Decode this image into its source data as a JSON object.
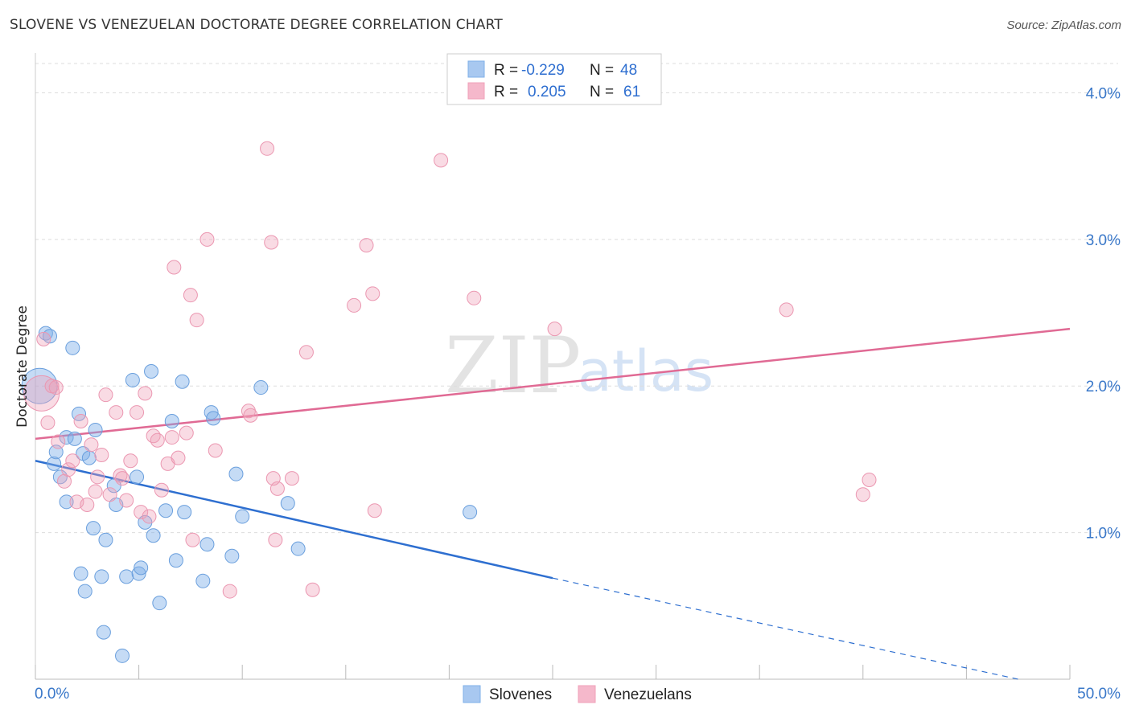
{
  "title": "SLOVENE VS VENEZUELAN DOCTORATE DEGREE CORRELATION CHART",
  "source": "Source: ZipAtlas.com",
  "watermark": {
    "zip": "ZIP",
    "atlas": "atlas"
  },
  "legend": {
    "rows": [
      {
        "r_label": "R =",
        "r_value": "-0.229",
        "n_label": "N =",
        "n_value": "48",
        "color": "#a8c8f0"
      },
      {
        "r_label": "R =",
        "r_value": "0.205",
        "n_label": "N =",
        "n_value": "61",
        "color": "#f5b8cb"
      }
    ]
  },
  "bottom_legend": [
    "Slovenes",
    "Venezuelans"
  ],
  "colors": {
    "slovenes": "#7fb0e8",
    "venezuelans": "#f0a0b8",
    "slovenes_line": "#2e6fd0",
    "venezuelans_line": "#e06a94",
    "axis_text": "#3a78c9"
  },
  "chart_data": {
    "type": "scatter",
    "title": "SLOVENE VS VENEZUELAN DOCTORATE DEGREE CORRELATION CHART",
    "xlabel": "",
    "ylabel": "Doctorate Degree",
    "xlim": [
      0,
      50
    ],
    "ylim": [
      0,
      4.2
    ],
    "x_tick_labels": [
      "0.0%",
      "50.0%"
    ],
    "y_ticks": [
      1.0,
      2.0,
      3.0,
      4.0
    ],
    "y_tick_labels": [
      "1.0%",
      "2.0%",
      "3.0%",
      "4.0%"
    ],
    "grid": true,
    "legend_position": "top-center",
    "series": [
      {
        "name": "Slovenes",
        "color": "#7fb0e8",
        "points": [
          [
            0.2,
            2.0
          ],
          [
            0.5,
            2.36
          ],
          [
            0.7,
            2.34
          ],
          [
            1.8,
            2.26
          ],
          [
            0.9,
            1.47
          ],
          [
            1.0,
            1.55
          ],
          [
            1.2,
            1.38
          ],
          [
            1.5,
            1.65
          ],
          [
            1.9,
            1.64
          ],
          [
            2.1,
            1.81
          ],
          [
            2.3,
            1.54
          ],
          [
            2.6,
            1.51
          ],
          [
            1.5,
            1.21
          ],
          [
            2.9,
            1.7
          ],
          [
            2.8,
            1.03
          ],
          [
            2.2,
            0.72
          ],
          [
            2.4,
            0.6
          ],
          [
            3.2,
            0.7
          ],
          [
            3.4,
            0.95
          ],
          [
            3.3,
            0.32
          ],
          [
            3.8,
            1.32
          ],
          [
            3.9,
            1.19
          ],
          [
            4.7,
            2.04
          ],
          [
            4.9,
            1.38
          ],
          [
            4.4,
            0.7
          ],
          [
            5.0,
            0.72
          ],
          [
            5.1,
            0.76
          ],
          [
            4.2,
            0.16
          ],
          [
            5.3,
            1.07
          ],
          [
            5.6,
            2.1
          ],
          [
            6.0,
            0.52
          ],
          [
            6.3,
            1.15
          ],
          [
            6.6,
            1.76
          ],
          [
            6.8,
            0.81
          ],
          [
            7.2,
            1.14
          ],
          [
            7.1,
            2.03
          ],
          [
            8.1,
            0.67
          ],
          [
            8.3,
            0.92
          ],
          [
            8.5,
            1.82
          ],
          [
            8.6,
            1.78
          ],
          [
            9.5,
            0.84
          ],
          [
            9.7,
            1.4
          ],
          [
            10.0,
            1.11
          ],
          [
            10.9,
            1.99
          ],
          [
            12.2,
            1.2
          ],
          [
            12.7,
            0.89
          ],
          [
            21.0,
            1.14
          ],
          [
            5.7,
            0.98
          ]
        ]
      },
      {
        "name": "Venezuelans",
        "color": "#f0a0b8",
        "points": [
          [
            0.3,
            1.95
          ],
          [
            0.4,
            2.32
          ],
          [
            0.6,
            1.75
          ],
          [
            0.8,
            2.0
          ],
          [
            1.0,
            1.99
          ],
          [
            1.1,
            1.62
          ],
          [
            1.4,
            1.35
          ],
          [
            1.6,
            1.43
          ],
          [
            1.8,
            1.49
          ],
          [
            2.0,
            1.21
          ],
          [
            2.2,
            1.76
          ],
          [
            2.5,
            1.19
          ],
          [
            2.7,
            1.6
          ],
          [
            2.9,
            1.28
          ],
          [
            3.0,
            1.38
          ],
          [
            3.2,
            1.53
          ],
          [
            3.4,
            1.94
          ],
          [
            3.6,
            1.26
          ],
          [
            3.9,
            1.82
          ],
          [
            4.1,
            1.39
          ],
          [
            4.2,
            1.37
          ],
          [
            4.4,
            1.22
          ],
          [
            4.6,
            1.49
          ],
          [
            4.9,
            1.82
          ],
          [
            5.1,
            1.14
          ],
          [
            5.3,
            1.95
          ],
          [
            5.5,
            1.11
          ],
          [
            5.7,
            1.66
          ],
          [
            5.9,
            1.63
          ],
          [
            6.1,
            1.29
          ],
          [
            6.4,
            1.47
          ],
          [
            6.6,
            1.65
          ],
          [
            6.7,
            2.81
          ],
          [
            6.9,
            1.51
          ],
          [
            7.3,
            1.68
          ],
          [
            7.5,
            2.62
          ],
          [
            7.6,
            0.95
          ],
          [
            7.8,
            2.45
          ],
          [
            8.3,
            3.0
          ],
          [
            8.7,
            1.56
          ],
          [
            9.4,
            0.6
          ],
          [
            10.3,
            1.83
          ],
          [
            10.4,
            1.8
          ],
          [
            11.2,
            3.62
          ],
          [
            11.4,
            2.98
          ],
          [
            11.6,
            0.95
          ],
          [
            11.7,
            1.3
          ],
          [
            12.4,
            1.37
          ],
          [
            13.1,
            2.23
          ],
          [
            13.4,
            0.61
          ],
          [
            15.4,
            2.55
          ],
          [
            16.0,
            2.96
          ],
          [
            16.3,
            2.63
          ],
          [
            16.4,
            1.15
          ],
          [
            19.6,
            3.54
          ],
          [
            21.2,
            2.6
          ],
          [
            25.1,
            2.39
          ],
          [
            36.3,
            2.52
          ],
          [
            40.0,
            1.26
          ],
          [
            40.3,
            1.36
          ],
          [
            11.5,
            1.37
          ]
        ]
      }
    ],
    "trend_lines": [
      {
        "series": "Slovenes",
        "x": [
          0,
          25
        ],
        "y": [
          1.49,
          0.69
        ],
        "dashed_extension": {
          "x": [
            25,
            47.5
          ],
          "y": [
            0.69,
            0.0
          ]
        }
      },
      {
        "series": "Venezuelans",
        "x": [
          0,
          50
        ],
        "y": [
          1.64,
          2.39
        ]
      }
    ]
  }
}
